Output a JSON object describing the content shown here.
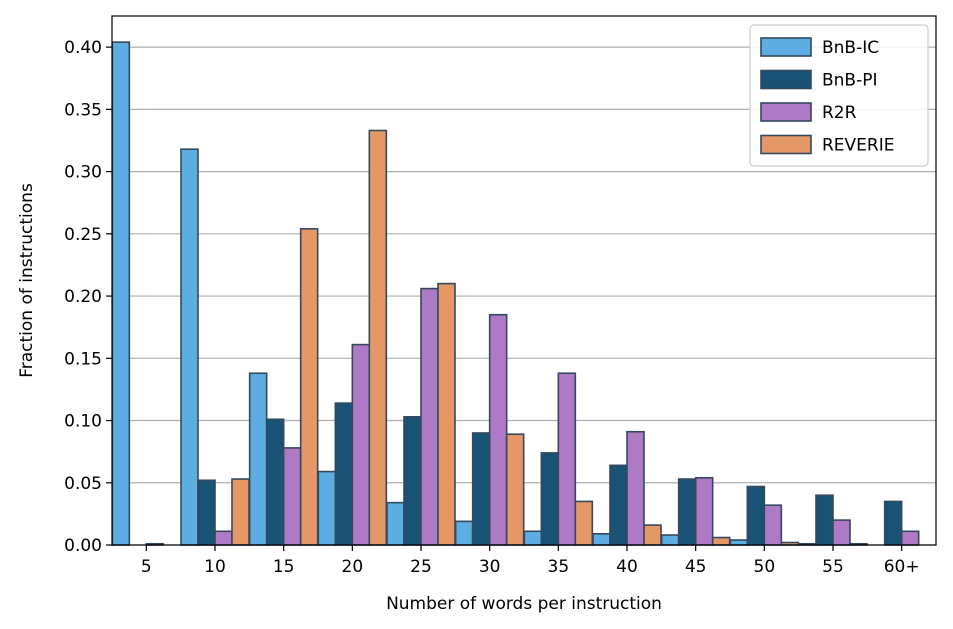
{
  "chart_data": {
    "type": "bar",
    "title": "",
    "xlabel": "Number of words per instruction",
    "ylabel": "Fraction of instructions",
    "ylim": [
      0,
      0.425
    ],
    "yticks": [
      "0.00",
      "0.05",
      "0.10",
      "0.15",
      "0.20",
      "0.25",
      "0.30",
      "0.35",
      "0.40"
    ],
    "categories": [
      "5",
      "10",
      "15",
      "20",
      "25",
      "30",
      "35",
      "40",
      "45",
      "50",
      "55",
      "60+"
    ],
    "grid": "horizontal",
    "legend_position": "top-right",
    "series": [
      {
        "name": "BnB-IC",
        "color": "#5dade2",
        "values": [
          0.404,
          0.318,
          0.138,
          0.059,
          0.034,
          0.019,
          0.011,
          0.009,
          0.008,
          0.004,
          0.001,
          0.0
        ]
      },
      {
        "name": "BnB-PI",
        "color": "#1a5276",
        "values": [
          0.0,
          0.052,
          0.101,
          0.114,
          0.103,
          0.09,
          0.074,
          0.064,
          0.053,
          0.047,
          0.04,
          0.035
        ]
      },
      {
        "name": "R2R",
        "color": "#af7ac5",
        "values": [
          0.001,
          0.011,
          0.078,
          0.161,
          0.206,
          0.185,
          0.138,
          0.091,
          0.054,
          0.032,
          0.02,
          0.011
        ]
      },
      {
        "name": "REVERIE",
        "color": "#e59866",
        "values": [
          0.0,
          0.053,
          0.254,
          0.333,
          0.21,
          0.089,
          0.035,
          0.016,
          0.006,
          0.002,
          0.001,
          0.0
        ]
      }
    ]
  }
}
